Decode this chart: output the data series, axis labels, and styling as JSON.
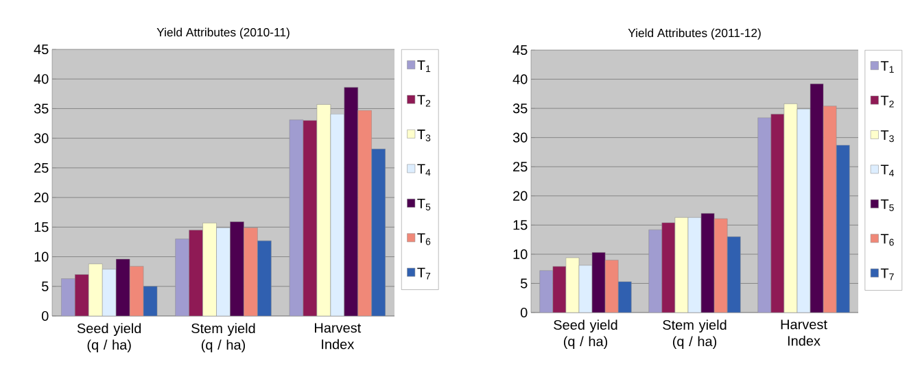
{
  "chart_data": [
    {
      "type": "bar",
      "title": "Yield Attributes (2010-11)",
      "categories": [
        "Seed yield (q / ha)",
        "Stem yield (q / ha)",
        "Harvest Index"
      ],
      "ylim": [
        0,
        45
      ],
      "yticks": [
        0,
        5,
        10,
        15,
        20,
        25,
        30,
        35,
        40,
        45
      ],
      "grid": "y",
      "legend": "right",
      "series": [
        {
          "name": "T$_{1}$",
          "color": "#a09cd0",
          "values": [
            6.3,
            13.0,
            33.1
          ]
        },
        {
          "name": "T$_{2}$",
          "color": "#8f1a55",
          "values": [
            7.0,
            14.5,
            33.0
          ]
        },
        {
          "name": "T$_{3}$",
          "color": "#ffffcc",
          "values": [
            8.8,
            15.7,
            35.7
          ]
        },
        {
          "name": "T$_{4}$",
          "color": "#ddeeff",
          "values": [
            7.9,
            14.9,
            34.1
          ]
        },
        {
          "name": "T$_{5}$",
          "color": "#4d0050",
          "values": [
            9.6,
            15.9,
            38.6
          ]
        },
        {
          "name": "T$_{6}$",
          "color": "#f08878",
          "values": [
            8.4,
            14.9,
            34.7
          ]
        },
        {
          "name": "T$_{7}$",
          "color": "#3060b0",
          "values": [
            5.0,
            12.7,
            28.2
          ]
        }
      ]
    },
    {
      "type": "bar",
      "title": "Yield Attributes (2011-12)",
      "categories": [
        "Seed yield (q / ha)",
        "Stem yield (q / ha)",
        "Harvest Index"
      ],
      "ylim": [
        0,
        45
      ],
      "yticks": [
        0,
        5,
        10,
        15,
        20,
        25,
        30,
        35,
        40,
        45
      ],
      "grid": "y",
      "legend": "right",
      "series": [
        {
          "name": "T$_{1}$",
          "color": "#a09cd0",
          "values": [
            7.2,
            14.2,
            33.4
          ]
        },
        {
          "name": "T$_{2}$",
          "color": "#8f1a55",
          "values": [
            7.9,
            15.4,
            34.0
          ]
        },
        {
          "name": "T$_{3}$",
          "color": "#ffffcc",
          "values": [
            9.4,
            16.3,
            35.8
          ]
        },
        {
          "name": "T$_{4}$",
          "color": "#ddeeff",
          "values": [
            8.1,
            16.3,
            34.9
          ]
        },
        {
          "name": "T$_{5}$",
          "color": "#4d0050",
          "values": [
            10.3,
            17.0,
            39.2
          ]
        },
        {
          "name": "T$_{6}$",
          "color": "#f08878",
          "values": [
            9.0,
            16.1,
            35.4
          ]
        },
        {
          "name": "T$_{7}$",
          "color": "#3060b0",
          "values": [
            5.3,
            13.0,
            28.7
          ]
        }
      ]
    }
  ]
}
